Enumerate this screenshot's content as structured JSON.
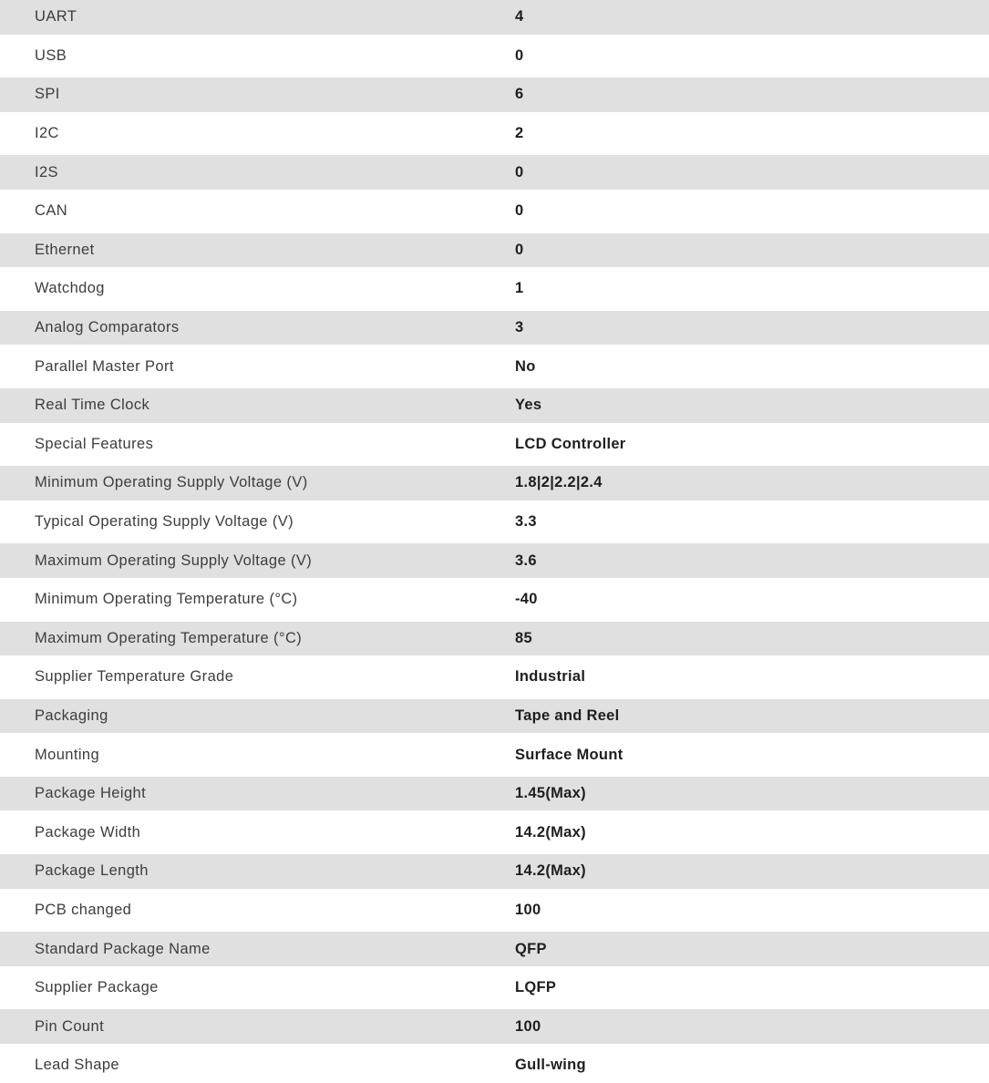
{
  "table": {
    "stripe_color": "#e0e0e0",
    "label_color": "#3d3d3d",
    "value_color": "#1e1e1e",
    "rows": [
      {
        "label": "UART",
        "value": "4"
      },
      {
        "label": "USB",
        "value": "0"
      },
      {
        "label": "SPI",
        "value": "6"
      },
      {
        "label": "I2C",
        "value": "2"
      },
      {
        "label": "I2S",
        "value": "0"
      },
      {
        "label": "CAN",
        "value": "0"
      },
      {
        "label": "Ethernet",
        "value": "0"
      },
      {
        "label": "Watchdog",
        "value": "1"
      },
      {
        "label": "Analog Comparators",
        "value": "3"
      },
      {
        "label": "Parallel Master Port",
        "value": "No"
      },
      {
        "label": "Real Time Clock",
        "value": "Yes"
      },
      {
        "label": "Special Features",
        "value": "LCD Controller"
      },
      {
        "label": "Minimum Operating Supply Voltage (V)",
        "value": "1.8|2|2.2|2.4"
      },
      {
        "label": "Typical Operating Supply Voltage (V)",
        "value": "3.3"
      },
      {
        "label": "Maximum Operating Supply Voltage (V)",
        "value": "3.6"
      },
      {
        "label": "Minimum Operating Temperature (°C)",
        "value": "-40"
      },
      {
        "label": "Maximum Operating Temperature (°C)",
        "value": "85"
      },
      {
        "label": "Supplier Temperature Grade",
        "value": "Industrial"
      },
      {
        "label": "Packaging",
        "value": "Tape and Reel"
      },
      {
        "label": "Mounting",
        "value": "Surface Mount"
      },
      {
        "label": "Package Height",
        "value": "1.45(Max)"
      },
      {
        "label": "Package Width",
        "value": "14.2(Max)"
      },
      {
        "label": "Package Length",
        "value": "14.2(Max)"
      },
      {
        "label": "PCB changed",
        "value": "100"
      },
      {
        "label": "Standard Package Name",
        "value": "QFP"
      },
      {
        "label": "Supplier Package",
        "value": "LQFP"
      },
      {
        "label": "Pin Count",
        "value": "100"
      },
      {
        "label": "Lead Shape",
        "value": "Gull-wing"
      }
    ]
  }
}
